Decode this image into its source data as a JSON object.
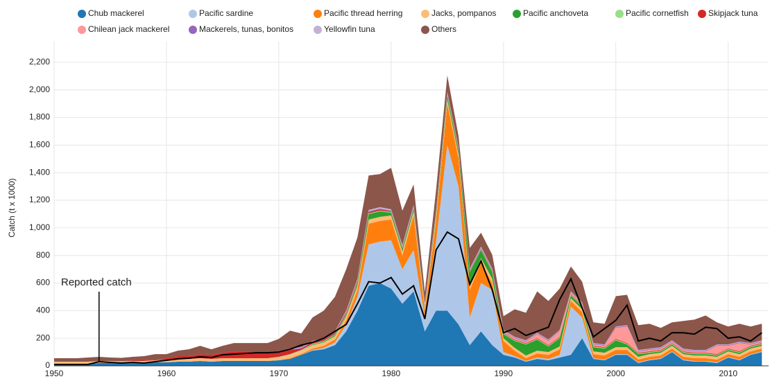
{
  "chart_data": {
    "type": "stacked_area",
    "y_label": "Catch (t x 1000)",
    "x": [
      1950,
      1951,
      1952,
      1953,
      1954,
      1955,
      1956,
      1957,
      1958,
      1959,
      1960,
      1961,
      1962,
      1963,
      1964,
      1965,
      1966,
      1967,
      1968,
      1969,
      1970,
      1971,
      1972,
      1973,
      1974,
      1975,
      1976,
      1977,
      1978,
      1979,
      1980,
      1981,
      1982,
      1983,
      1984,
      1985,
      1986,
      1987,
      1988,
      1989,
      1990,
      1991,
      1992,
      1993,
      1994,
      1995,
      1996,
      1997,
      1998,
      1999,
      2000,
      2001,
      2002,
      2003,
      2004,
      2005,
      2006,
      2007,
      2008,
      2009,
      2010,
      2011,
      2012,
      2013
    ],
    "xlim": [
      1950,
      2013.6
    ],
    "xticks": [
      1950,
      1960,
      1970,
      1980,
      1990,
      2000,
      2010
    ],
    "ylim": [
      0,
      2300
    ],
    "yticks": [
      0,
      {
        "value": 200,
        "label": "200"
      },
      {
        "value": 400,
        "label": "400"
      },
      {
        "value": 600,
        "label": "600"
      },
      {
        "value": 800,
        "label": "800"
      },
      {
        "value": 1000,
        "label": "1,000"
      },
      {
        "value": 1200,
        "label": "1,200"
      },
      {
        "value": 1400,
        "label": "1,400"
      },
      {
        "value": 1600,
        "label": "1,600"
      },
      {
        "value": 1800,
        "label": "1,800"
      },
      {
        "value": 2000,
        "label": "2,000"
      },
      {
        "value": 2200,
        "label": "2,200"
      }
    ],
    "grid": true,
    "series": [
      {
        "name": "Chub mackerel",
        "color": "#1f77b4",
        "values": [
          15,
          15,
          15,
          15,
          20,
          20,
          18,
          20,
          20,
          25,
          25,
          30,
          30,
          35,
          30,
          35,
          35,
          35,
          35,
          35,
          40,
          50,
          80,
          110,
          120,
          150,
          250,
          400,
          580,
          600,
          560,
          450,
          540,
          250,
          400,
          400,
          300,
          150,
          250,
          150,
          80,
          60,
          30,
          50,
          40,
          60,
          80,
          200,
          50,
          40,
          80,
          80,
          20,
          40,
          50,
          100,
          40,
          30,
          30,
          20,
          60,
          40,
          80,
          100
        ]
      },
      {
        "name": "Pacific sardine",
        "color": "#aec7e8",
        "values": [
          0,
          0,
          0,
          0,
          0,
          0,
          0,
          0,
          0,
          0,
          0,
          0,
          0,
          0,
          0,
          0,
          0,
          0,
          0,
          0,
          0,
          0,
          0,
          5,
          10,
          20,
          50,
          100,
          300,
          300,
          350,
          250,
          300,
          100,
          500,
          1200,
          1000,
          200,
          350,
          400,
          20,
          10,
          5,
          10,
          10,
          20,
          350,
          150,
          5,
          5,
          5,
          5,
          5,
          5,
          5,
          5,
          5,
          5,
          5,
          5,
          5,
          5,
          5,
          5
        ]
      },
      {
        "name": "Pacific thread herring",
        "color": "#ff7f0e",
        "values": [
          0,
          0,
          0,
          0,
          0,
          0,
          0,
          0,
          0,
          0,
          0,
          0,
          0,
          0,
          0,
          0,
          0,
          0,
          0,
          0,
          0,
          5,
          5,
          10,
          15,
          20,
          30,
          50,
          150,
          150,
          150,
          100,
          250,
          50,
          150,
          300,
          200,
          200,
          150,
          50,
          80,
          40,
          20,
          30,
          30,
          40,
          40,
          40,
          30,
          30,
          30,
          30,
          20,
          20,
          20,
          20,
          20,
          20,
          20,
          20,
          20,
          20,
          20,
          20
        ]
      },
      {
        "name": "Jacks, pompanos",
        "color": "#ffbb78",
        "values": [
          15,
          15,
          15,
          15,
          15,
          15,
          15,
          15,
          15,
          15,
          20,
          20,
          20,
          20,
          20,
          20,
          20,
          20,
          20,
          20,
          20,
          25,
          25,
          25,
          25,
          25,
          30,
          30,
          30,
          30,
          30,
          30,
          30,
          20,
          30,
          30,
          30,
          30,
          30,
          30,
          20,
          20,
          20,
          20,
          20,
          20,
          20,
          20,
          20,
          20,
          20,
          20,
          20,
          20,
          20,
          20,
          20,
          20,
          20,
          20,
          20,
          20,
          20,
          20
        ]
      },
      {
        "name": "Pacific anchoveta",
        "color": "#2ca02c",
        "values": [
          0,
          0,
          0,
          0,
          0,
          0,
          0,
          0,
          0,
          0,
          0,
          0,
          0,
          0,
          0,
          0,
          0,
          0,
          0,
          0,
          0,
          0,
          0,
          5,
          5,
          10,
          10,
          20,
          40,
          40,
          20,
          20,
          20,
          10,
          20,
          30,
          30,
          100,
          60,
          50,
          30,
          50,
          80,
          80,
          40,
          60,
          20,
          20,
          30,
          30,
          50,
          20,
          20,
          10,
          10,
          10,
          10,
          10,
          10,
          10,
          10,
          10,
          10,
          10
        ]
      },
      {
        "name": "Pacific cornetfish",
        "color": "#98df8a",
        "values": [
          0,
          0,
          0,
          0,
          0,
          0,
          0,
          0,
          0,
          0,
          0,
          0,
          0,
          0,
          0,
          0,
          0,
          0,
          0,
          0,
          5,
          5,
          5,
          5,
          5,
          5,
          5,
          5,
          5,
          5,
          5,
          5,
          5,
          5,
          5,
          5,
          5,
          5,
          5,
          5,
          5,
          5,
          5,
          5,
          5,
          5,
          5,
          5,
          5,
          5,
          5,
          5,
          5,
          5,
          5,
          5,
          5,
          5,
          5,
          5,
          5,
          5,
          5,
          5
        ]
      },
      {
        "name": "Skipjack tuna",
        "color": "#d62728",
        "values": [
          0,
          0,
          0,
          0,
          0,
          0,
          0,
          5,
          5,
          5,
          10,
          20,
          20,
          30,
          30,
          40,
          50,
          50,
          40,
          40,
          30,
          30,
          10,
          10,
          10,
          10,
          10,
          10,
          10,
          10,
          5,
          5,
          5,
          5,
          5,
          5,
          5,
          5,
          5,
          5,
          5,
          5,
          5,
          5,
          5,
          5,
          5,
          5,
          5,
          5,
          5,
          5,
          5,
          5,
          5,
          5,
          5,
          5,
          5,
          5,
          5,
          5,
          5,
          5
        ]
      },
      {
        "name": "Chilean jack mackerel",
        "color": "#ff9896",
        "values": [
          0,
          0,
          0,
          0,
          0,
          0,
          0,
          0,
          0,
          0,
          0,
          0,
          0,
          0,
          0,
          0,
          0,
          0,
          0,
          0,
          0,
          0,
          0,
          0,
          0,
          0,
          0,
          0,
          0,
          0,
          0,
          0,
          0,
          0,
          0,
          0,
          0,
          0,
          0,
          0,
          10,
          10,
          10,
          30,
          30,
          40,
          10,
          10,
          10,
          10,
          80,
          120,
          10,
          10,
          10,
          10,
          10,
          10,
          10,
          60,
          20,
          60,
          10,
          10
        ]
      },
      {
        "name": "Mackerels, tunas, bonitos",
        "color": "#9467bd",
        "values": [
          0,
          0,
          0,
          0,
          0,
          0,
          0,
          0,
          0,
          0,
          0,
          0,
          0,
          0,
          0,
          0,
          0,
          0,
          0,
          0,
          5,
          5,
          5,
          5,
          5,
          5,
          5,
          5,
          5,
          5,
          5,
          5,
          5,
          5,
          5,
          5,
          5,
          5,
          5,
          5,
          5,
          5,
          5,
          5,
          5,
          5,
          5,
          5,
          5,
          5,
          5,
          5,
          5,
          5,
          5,
          5,
          5,
          5,
          5,
          5,
          5,
          5,
          5,
          5
        ]
      },
      {
        "name": "Yellowfin tuna",
        "color": "#c5b0d5",
        "values": [
          0,
          0,
          0,
          0,
          0,
          0,
          0,
          0,
          0,
          0,
          0,
          0,
          0,
          0,
          0,
          0,
          0,
          0,
          0,
          0,
          5,
          5,
          5,
          5,
          5,
          5,
          10,
          10,
          10,
          10,
          10,
          10,
          10,
          10,
          10,
          10,
          10,
          10,
          10,
          10,
          5,
          5,
          5,
          5,
          5,
          5,
          5,
          5,
          5,
          5,
          5,
          5,
          5,
          5,
          5,
          5,
          5,
          5,
          5,
          5,
          5,
          5,
          5,
          5
        ]
      },
      {
        "name": "Others",
        "color": "#8c564b",
        "values": [
          25,
          25,
          25,
          30,
          30,
          25,
          25,
          25,
          30,
          40,
          30,
          40,
          50,
          60,
          40,
          50,
          60,
          60,
          70,
          70,
          90,
          130,
          100,
          170,
          200,
          250,
          300,
          300,
          250,
          240,
          300,
          250,
          150,
          80,
          150,
          120,
          80,
          150,
          100,
          100,
          100,
          200,
          200,
          300,
          280,
          300,
          180,
          150,
          150,
          150,
          220,
          220,
          180,
          180,
          140,
          130,
          200,
          220,
          250,
          160,
          130,
          130,
          120,
          120
        ]
      }
    ],
    "reported_catch": {
      "color": "#000000",
      "values": [
        10,
        10,
        10,
        10,
        30,
        25,
        20,
        25,
        20,
        30,
        40,
        50,
        55,
        65,
        60,
        80,
        85,
        90,
        95,
        95,
        100,
        120,
        150,
        170,
        200,
        250,
        300,
        450,
        610,
        600,
        640,
        520,
        580,
        340,
        840,
        970,
        920,
        590,
        760,
        550,
        240,
        270,
        220,
        250,
        280,
        480,
        630,
        420,
        210,
        270,
        330,
        440,
        180,
        200,
        180,
        240,
        240,
        230,
        280,
        270,
        200,
        210,
        180,
        240
      ]
    },
    "annotation": {
      "text": "Reported catch",
      "x": 1954
    }
  }
}
